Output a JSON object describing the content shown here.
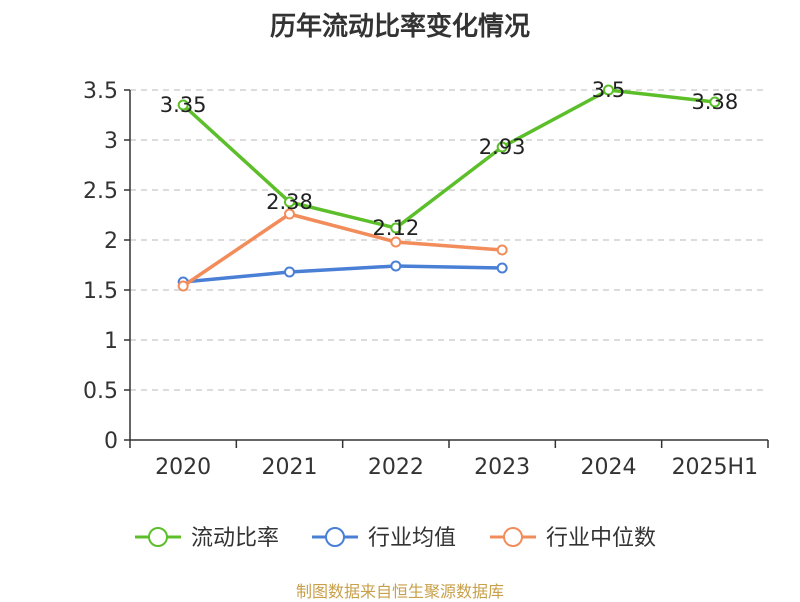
{
  "title": "历年流动比率变化情况",
  "source": "制图数据来自恒生聚源数据库",
  "chart_data": {
    "type": "line",
    "title": "历年流动比率变化情况",
    "categories": [
      "2020",
      "2021",
      "2022",
      "2023",
      "2024",
      "2025H1"
    ],
    "ylim": [
      0,
      3.5
    ],
    "yticks": [
      "0",
      "0.5",
      "1",
      "1.5",
      "2",
      "2.5",
      "3",
      "3.5"
    ],
    "grid": true,
    "legend_position": "bottom",
    "series": [
      {
        "name": "流动比率",
        "color": "#5cbf2a",
        "values": [
          3.35,
          2.38,
          2.12,
          2.93,
          3.5,
          3.38
        ],
        "labels": [
          "3.35",
          "2.38",
          "2.12",
          "2.93",
          "3.5",
          "3.38"
        ]
      },
      {
        "name": "行业均值",
        "color": "#4a7fd6",
        "values": [
          1.58,
          1.68,
          1.74,
          1.72,
          null,
          null
        ],
        "labels": []
      },
      {
        "name": "行业中位数",
        "color": "#f28c5a",
        "values": [
          1.54,
          2.26,
          1.98,
          1.9,
          null,
          null
        ],
        "labels": []
      }
    ]
  }
}
